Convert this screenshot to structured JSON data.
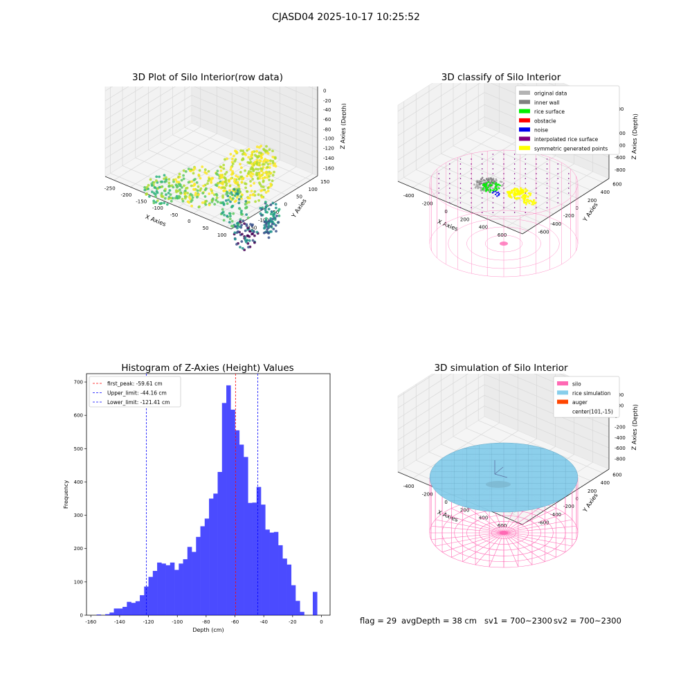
{
  "suptitle": "CJASD04 2025-10-17 10:25:52",
  "panel1": {
    "title": "3D Plot of Silo Interior(row data)",
    "xlabel": "X Axies",
    "ylabel": "Y Axies",
    "zlabel": "Z Axies (Depth)",
    "xticks": [
      "-250",
      "-200",
      "-150",
      "-100",
      "-50",
      "0",
      "50",
      "100"
    ],
    "yticks": [
      "-150",
      "-100",
      "-50",
      "0",
      "50",
      "100",
      "150"
    ],
    "zticks": [
      "0",
      "-20",
      "-40",
      "-60",
      "-80",
      "-100",
      "-120",
      "-140",
      "-160"
    ]
  },
  "panel2": {
    "title": "3D classify of Silo Interior",
    "xlabel": "X Axies",
    "ylabel": "Y Axies",
    "zlabel": "Z Axies (Depth)",
    "xticks": [
      "-400",
      "-200",
      "0",
      "200",
      "400",
      "600"
    ],
    "yticks": [
      "-600",
      "-400",
      "-200",
      "0",
      "200",
      "400",
      "600"
    ],
    "zticks": [
      "200",
      "0",
      "-200",
      "-400",
      "-600",
      "-800"
    ],
    "legend": [
      {
        "label": "original data",
        "color": "#b3b3b3"
      },
      {
        "label": "inner wall",
        "color": "#808080"
      },
      {
        "label": "rice surface",
        "color": "#00ee00"
      },
      {
        "label": "obstacle",
        "color": "#ff0000"
      },
      {
        "label": "noise",
        "color": "#0000ee"
      },
      {
        "label": "interpolated rice surface",
        "color": "#800080"
      },
      {
        "label": "symmetric generated points",
        "color": "#ffff00"
      }
    ]
  },
  "panel3": {
    "title": "Histogram of Z-Axies (Height) Values",
    "legend": [
      {
        "label": "first_peak: -59.61 cm",
        "color": "#ff0000"
      },
      {
        "label": "Upper_limit: -44.16 cm",
        "color": "#0000ff"
      },
      {
        "label": "Lower_limit: -121.41 cm",
        "color": "#0000ff"
      }
    ]
  },
  "panel4": {
    "title": "3D simulation of Silo Interior",
    "xlabel": "X Axies",
    "ylabel": "Y Axies",
    "zlabel": "Z Axies (Depth)",
    "xticks": [
      "-400",
      "-200",
      "0",
      "200",
      "400",
      "600"
    ],
    "yticks": [
      "-600",
      "-400",
      "-200",
      "0",
      "200",
      "400",
      "600"
    ],
    "zticks": [
      "400",
      "200",
      "0",
      "-200",
      "-400",
      "-600",
      "-800"
    ],
    "legend": [
      {
        "label": "silo",
        "color": "#ff69b4"
      },
      {
        "label": "rice simulation",
        "color": "#87ceeb"
      },
      {
        "label": "auger",
        "color": "#ff4500"
      },
      {
        "label": "center(101,-15)",
        "color": ""
      }
    ]
  },
  "footer": {
    "flag": "flag = 29",
    "avg": "avgDepth = 38 cm",
    "sv1": "sv1 = 700~2300",
    "sv2": "sv2 = 700~2300"
  },
  "chart_data": [
    {
      "type": "scatter",
      "title": "3D Plot of Silo Interior(row data)",
      "xlabel": "X Axies",
      "ylabel": "Y Axies",
      "zlabel": "Z Axies (Depth)",
      "xlim": [
        -280,
        110
      ],
      "ylim": [
        -170,
        170
      ],
      "zlim": [
        -170,
        10
      ],
      "colormap": "viridis"
    },
    {
      "type": "scatter",
      "title": "3D classify of Silo Interior",
      "xlabel": "X Axies",
      "ylabel": "Y Axies",
      "zlabel": "Z Axies (Depth)",
      "xlim": [
        -500,
        700
      ],
      "ylim": [
        -700,
        700
      ],
      "zlim": [
        -900,
        300
      ]
    },
    {
      "type": "bar",
      "title": "Histogram of Z-Axies (Height) Values",
      "xlabel": "Depth (cm)",
      "ylabel": "Frequency",
      "xlim": [
        -163,
        6
      ],
      "ylim": [
        0,
        725
      ],
      "xticks": [
        -160,
        -140,
        -120,
        -100,
        -80,
        -60,
        -40,
        -20,
        0
      ],
      "yticks": [
        0,
        100,
        200,
        300,
        400,
        500,
        600,
        700
      ],
      "bin_width": 3.0,
      "bin_centers": [
        -154.5,
        -151.5,
        -148.5,
        -145.5,
        -142.5,
        -139.5,
        -136.5,
        -133.5,
        -130.5,
        -127.5,
        -124.5,
        -121.5,
        -118.5,
        -115.5,
        -112.5,
        -109.5,
        -106.5,
        -103.5,
        -100.5,
        -97.5,
        -94.5,
        -91.5,
        -88.5,
        -85.5,
        -82.5,
        -79.5,
        -76.5,
        -73.5,
        -70.5,
        -67.5,
        -64.5,
        -61.5,
        -58.5,
        -55.5,
        -52.5,
        -49.5,
        -46.5,
        -43.5,
        -40.5,
        -37.5,
        -34.5,
        -31.5,
        -28.5,
        -25.5,
        -22.5,
        -19.5,
        -16.5,
        -13.5,
        -10.5,
        -7.5,
        -4.5,
        -1.5
      ],
      "values": [
        2,
        0,
        3,
        8,
        20,
        20,
        25,
        40,
        37,
        42,
        60,
        86,
        115,
        133,
        158,
        155,
        150,
        158,
        136,
        155,
        168,
        205,
        190,
        235,
        267,
        290,
        350,
        365,
        430,
        637,
        690,
        617,
        555,
        512,
        475,
        337,
        338,
        385,
        332,
        257,
        248,
        250,
        210,
        170,
        152,
        90,
        43,
        10,
        0,
        0,
        70,
        0
      ],
      "color": "#0000ff",
      "vlines": [
        {
          "x": -59.61,
          "color": "#ff0000",
          "label": "first_peak: -59.61 cm"
        },
        {
          "x": -44.16,
          "color": "#0000ff",
          "label": "Upper_limit: -44.16 cm"
        },
        {
          "x": -121.41,
          "color": "#0000ff",
          "label": "Lower_limit: -121.41 cm"
        }
      ],
      "legend_position": "upper-left"
    },
    {
      "type": "scatter",
      "title": "3D simulation of Silo Interior",
      "xlabel": "X Axies",
      "ylabel": "Y Axies",
      "zlabel": "Z Axies (Depth)",
      "xlim": [
        -500,
        700
      ],
      "ylim": [
        -700,
        700
      ],
      "zlim": [
        -900,
        500
      ]
    }
  ]
}
